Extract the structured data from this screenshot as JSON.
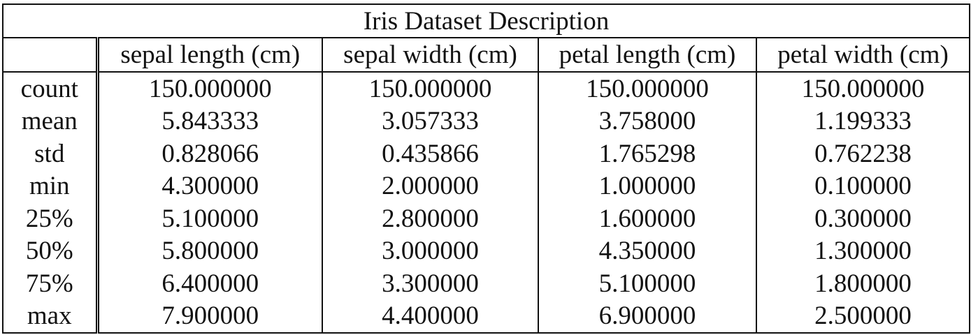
{
  "table": {
    "title": "Iris Dataset Description",
    "columns": [
      "",
      "sepal length (cm)",
      "sepal width (cm)",
      "petal length (cm)",
      "petal width (cm)"
    ],
    "rows": [
      {
        "label": "count",
        "values": [
          "150.000000",
          "150.000000",
          "150.000000",
          "150.000000"
        ]
      },
      {
        "label": "mean",
        "values": [
          "5.843333",
          "3.057333",
          "3.758000",
          "1.199333"
        ]
      },
      {
        "label": "std",
        "values": [
          "0.828066",
          "0.435866",
          "1.765298",
          "0.762238"
        ]
      },
      {
        "label": "min",
        "values": [
          "4.300000",
          "2.000000",
          "1.000000",
          "0.100000"
        ]
      },
      {
        "label": "25%",
        "values": [
          "5.100000",
          "2.800000",
          "1.600000",
          "0.300000"
        ]
      },
      {
        "label": "50%",
        "values": [
          "5.800000",
          "3.000000",
          "4.350000",
          "1.300000"
        ]
      },
      {
        "label": "75%",
        "values": [
          "6.400000",
          "3.300000",
          "5.100000",
          "1.800000"
        ]
      },
      {
        "label": "max",
        "values": [
          "7.900000",
          "4.400000",
          "6.900000",
          "2.500000"
        ]
      }
    ]
  },
  "chart_data": {
    "type": "table",
    "title": "Iris Dataset Description",
    "columns": [
      "sepal length (cm)",
      "sepal width (cm)",
      "petal length (cm)",
      "petal width (cm)"
    ],
    "row_labels": [
      "count",
      "mean",
      "std",
      "min",
      "25%",
      "50%",
      "75%",
      "max"
    ],
    "values": [
      [
        150.0,
        150.0,
        150.0,
        150.0
      ],
      [
        5.843333,
        3.057333,
        3.758,
        1.199333
      ],
      [
        0.828066,
        0.435866,
        1.765298,
        0.762238
      ],
      [
        4.3,
        2.0,
        1.0,
        0.1
      ],
      [
        5.1,
        2.8,
        1.6,
        0.3
      ],
      [
        5.8,
        3.0,
        4.35,
        1.3
      ],
      [
        6.4,
        3.3,
        5.1,
        1.8
      ],
      [
        7.9,
        4.4,
        6.9,
        2.5
      ]
    ]
  }
}
